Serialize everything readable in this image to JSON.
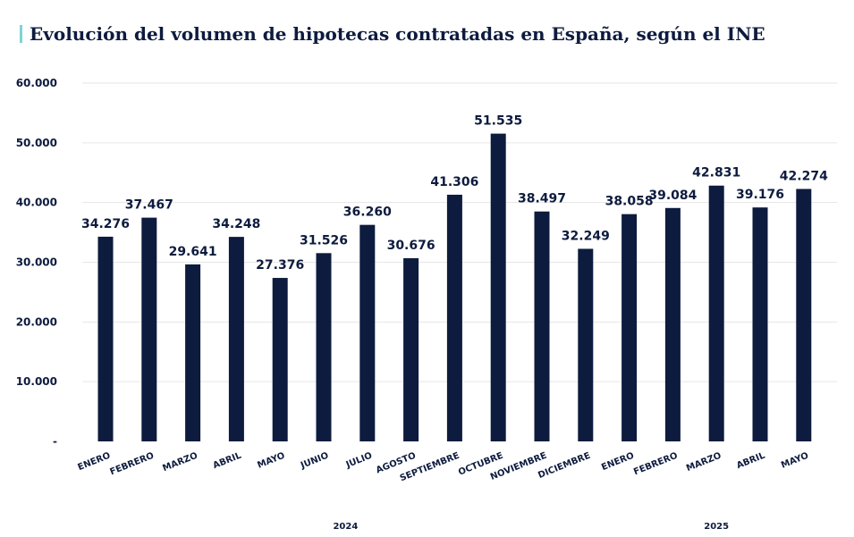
{
  "title": "Evolución del volumen de hipotecas contratadas en España, según el INE",
  "chart_data": {
    "type": "bar",
    "title": "Evolución del volumen de hipotecas contratadas en España, según el INE",
    "categories": [
      "ENERO",
      "FEBRERO",
      "MARZO",
      "ABRIL",
      "MAYO",
      "JUNIO",
      "JULIO",
      "AGOSTO",
      "SEPTIEMBRE",
      "OCTUBRE",
      "NOVIEMBRE",
      "DICIEMBRE",
      "ENERO",
      "FEBRERO",
      "MARZO",
      "ABRIL",
      "MAYO"
    ],
    "values": [
      34276,
      37467,
      29641,
      34248,
      27376,
      31526,
      36260,
      30676,
      41306,
      51535,
      38497,
      32249,
      38058,
      39084,
      42831,
      39176,
      42274
    ],
    "value_labels": [
      "34.276",
      "37.467",
      "29.641",
      "34.248",
      "27.376",
      "31.526",
      "36.260",
      "30.676",
      "41.306",
      "51.535",
      "38.497",
      "32.249",
      "38.058",
      "39.084",
      "42.831",
      "39.176",
      "42.274"
    ],
    "groups": [
      {
        "label": "2024",
        "start": 0,
        "end": 11
      },
      {
        "label": "2025",
        "start": 12,
        "end": 16
      }
    ],
    "ylim": [
      0,
      60000
    ],
    "yticks": [
      0,
      10000,
      20000,
      30000,
      40000,
      50000,
      60000
    ],
    "ytick_labels": [
      "-",
      "10.000",
      "20.000",
      "30.000",
      "40.000",
      "50.000",
      "60.000"
    ],
    "grid": true,
    "bar_color": "#0d1b3e",
    "accent_color": "#7fd3d6"
  }
}
